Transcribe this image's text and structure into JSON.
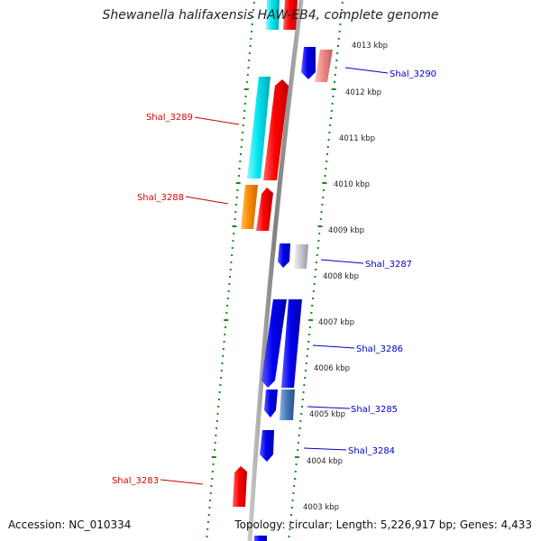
{
  "title": "Shewanella halifaxensis HAW-EB4, complete genome",
  "footer": {
    "accession": "Accession: NC_010334",
    "topology": "Topology: circular; Length: 5,226,917 bp; Genes: 4,433"
  },
  "kbp_labels": [
    "4013 kbp",
    "4012 kbp",
    "4011 kbp",
    "4010 kbp",
    "4009 kbp",
    "4008 kbp",
    "4007 kbp",
    "4006 kbp",
    "4005 kbp",
    "4004 kbp",
    "4003 kbp"
  ],
  "genes_left": [
    {
      "name": "Shal_3289",
      "color": "#ee0000"
    },
    {
      "name": "Shal_3288",
      "color": "#ee0000"
    },
    {
      "name": "Shal_3283",
      "color": "#ee0000"
    }
  ],
  "genes_right": [
    {
      "name": "Shal_3290",
      "color": "#0000cc"
    },
    {
      "name": "Shal_3287",
      "color": "#0000cc"
    },
    {
      "name": "Shal_3286",
      "color": "#0000cc"
    },
    {
      "name": "Shal_3285",
      "color": "#0000cc"
    },
    {
      "name": "Shal_3284",
      "color": "#0000cc"
    }
  ],
  "colors": {
    "backbone": "#8a8a8a",
    "dots": "#1a8a1a",
    "red": "#ee1111",
    "cyan": "#11e6f0",
    "orange": "#ff8c00",
    "blue": "#0a0ae6",
    "pink": "#f08a8a",
    "grey": "#c0c0c8",
    "steelblue": "#4a7ab8"
  }
}
